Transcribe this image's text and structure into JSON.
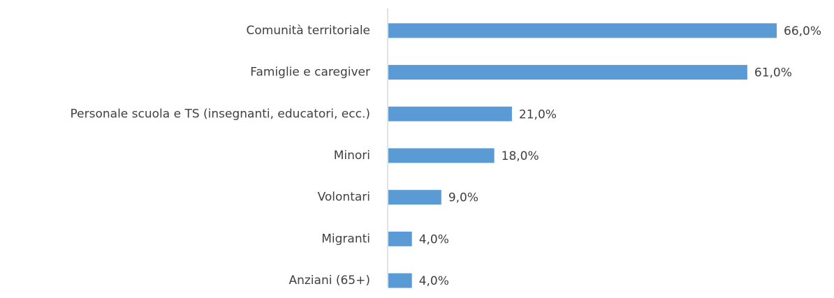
{
  "chart_data": {
    "type": "bar",
    "orientation": "horizontal",
    "categories": [
      "Comunità territoriale",
      "Famiglie e caregiver",
      "Personale scuola e TS (insegnanti, educatori, ecc.)",
      "Minori",
      "Volontari",
      "Migranti",
      "Anziani (65+)"
    ],
    "values": [
      66,
      61,
      21,
      18,
      9,
      4,
      4
    ],
    "value_labels": [
      "66,0%",
      "61,0%",
      "21,0%",
      "18,0%",
      "9,0%",
      "4,0%",
      "4,0%"
    ],
    "color": "#5b9bd5"
  }
}
